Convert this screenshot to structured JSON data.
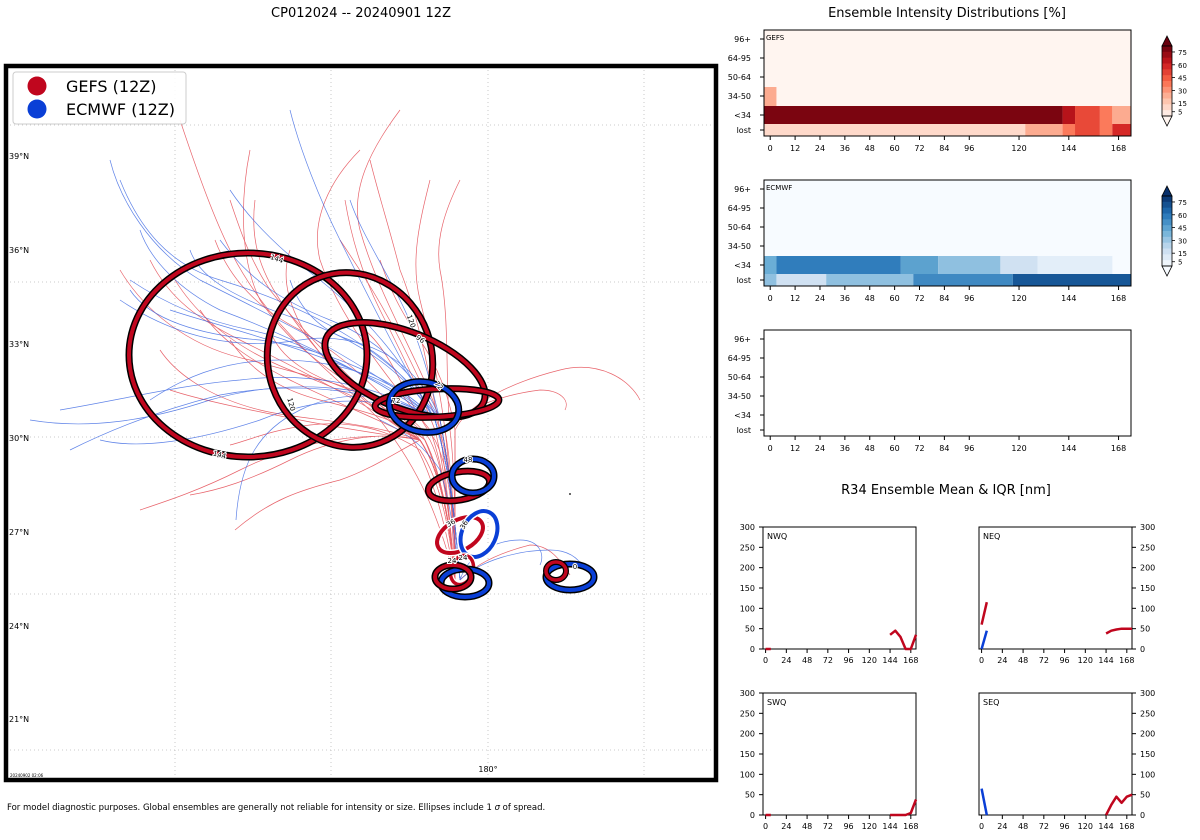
{
  "main_title": "CP012024 -- 20240901 12Z",
  "timestamp_small": "20240902 02:06",
  "footer_note_part1": "For model diagnostic purposes. Global ensembles are generally not reliable for intensity or size. Ellipses include 1 ",
  "footer_sigma": "σ",
  "footer_note_part2": " of spread.",
  "legend": [
    {
      "label": "GEFS (12Z)",
      "color": "#c0061e"
    },
    {
      "label": "ECMWF (12Z)",
      "color": "#0a3fd6"
    }
  ],
  "colors": {
    "gefs": "#c0061e",
    "ecmwf": "#0a3fd6",
    "gefs_track": "#e0303a",
    "ecmwf_track": "#2a5ae0"
  },
  "chart_data": [
    {
      "type": "map",
      "title": "CP012024 -- 20240901 12Z",
      "lat_ticks": [
        "39°N",
        "36°N",
        "33°N",
        "30°N",
        "27°N",
        "24°N",
        "21°N"
      ],
      "lon_ticks": [
        "180°"
      ],
      "gefs_ellipse_labels": [
        "0",
        "24",
        "48",
        "72",
        "96",
        "120",
        "144"
      ],
      "ecmwf_ellipse_labels": [
        "0",
        "24",
        "48",
        "72"
      ]
    },
    {
      "type": "heatmap",
      "title": "Ensemble Intensity Distributions [%]",
      "panels": [
        "GEFS",
        "ECMWF",
        ""
      ],
      "y_categories": [
        "96+",
        "64-95",
        "50-64",
        "34-50",
        "<34",
        "lost"
      ],
      "x_ticks": [
        "0",
        "12",
        "24",
        "36",
        "48",
        "60",
        "72",
        "84",
        "96",
        "120",
        "144",
        "168"
      ],
      "x_range": [
        -3,
        174
      ],
      "colorbar_ticks": [
        "75",
        "60",
        "45",
        "30",
        "15",
        "5"
      ],
      "gefs_cells": [
        {
          "row": "34-50",
          "x0": -3,
          "x1": 3,
          "value": 30
        },
        {
          "row": "<34",
          "x0": -3,
          "x1": 141,
          "value": 95
        },
        {
          "row": "<34",
          "x0": 141,
          "x1": 147,
          "value": 80
        },
        {
          "row": "<34",
          "x0": 147,
          "x1": 159,
          "value": 60
        },
        {
          "row": "<34",
          "x0": 159,
          "x1": 165,
          "value": 45
        },
        {
          "row": "<34",
          "x0": 165,
          "x1": 174,
          "value": 30
        },
        {
          "row": "lost",
          "x0": -3,
          "x1": 123,
          "value": 12
        },
        {
          "row": "lost",
          "x0": 123,
          "x1": 141,
          "value": 30
        },
        {
          "row": "lost",
          "x0": 141,
          "x1": 147,
          "value": 45
        },
        {
          "row": "lost",
          "x0": 147,
          "x1": 159,
          "value": 60
        },
        {
          "row": "lost",
          "x0": 159,
          "x1": 165,
          "value": 45
        },
        {
          "row": "lost",
          "x0": 165,
          "x1": 174,
          "value": 70
        }
      ],
      "ecmwf_cells": [
        {
          "row": "<34",
          "x0": -3,
          "x1": 3,
          "value": 50
        },
        {
          "row": "<34",
          "x0": 3,
          "x1": 63,
          "value": 70
        },
        {
          "row": "<34",
          "x0": 63,
          "x1": 81,
          "value": 55
        },
        {
          "row": "<34",
          "x0": 81,
          "x1": 111,
          "value": 40
        },
        {
          "row": "<34",
          "x0": 111,
          "x1": 129,
          "value": 20
        },
        {
          "row": "<34",
          "x0": 129,
          "x1": 165,
          "value": 10
        },
        {
          "row": "lost",
          "x0": -3,
          "x1": 3,
          "value": 40
        },
        {
          "row": "lost",
          "x0": 3,
          "x1": 27,
          "value": 20
        },
        {
          "row": "lost",
          "x0": 27,
          "x1": 69,
          "value": 40
        },
        {
          "row": "lost",
          "x0": 69,
          "x1": 117,
          "value": 65
        },
        {
          "row": "lost",
          "x0": 117,
          "x1": 174,
          "value": 85
        }
      ]
    },
    {
      "type": "line",
      "title": "R34 Ensemble Mean & IQR [nm]",
      "x_ticks": [
        "0",
        "24",
        "48",
        "72",
        "96",
        "120",
        "144",
        "168"
      ],
      "y_ticks": [
        "300",
        "250",
        "200",
        "150",
        "100",
        "50",
        "0"
      ],
      "xlim": [
        -3,
        174
      ],
      "ylim": [
        0,
        300
      ],
      "panels": [
        {
          "name": "NWQ",
          "gefs": [
            [
              0,
              0
            ],
            [
              6,
              0
            ]
          ],
          "gefs2": [
            [
              144,
              35
            ],
            [
              150,
              45
            ],
            [
              156,
              30
            ],
            [
              162,
              0
            ],
            [
              168,
              0
            ],
            [
              174,
              35
            ]
          ],
          "ecmwf": []
        },
        {
          "name": "NEQ",
          "gefs": [
            [
              0,
              60
            ],
            [
              6,
              115
            ]
          ],
          "gefs2": [
            [
              144,
              38
            ],
            [
              150,
              45
            ],
            [
              156,
              48
            ],
            [
              162,
              50
            ],
            [
              168,
              50
            ],
            [
              174,
              50
            ]
          ],
          "ecmwf": [
            [
              0,
              0
            ],
            [
              6,
              45
            ]
          ]
        },
        {
          "name": "SWQ",
          "gefs": [
            [
              0,
              0
            ],
            [
              6,
              0
            ]
          ],
          "gefs2": [
            [
              144,
              0
            ],
            [
              162,
              0
            ],
            [
              168,
              5
            ],
            [
              174,
              38
            ]
          ],
          "ecmwf": []
        },
        {
          "name": "SEQ",
          "gefs": [],
          "gefs2": [
            [
              144,
              0
            ],
            [
              150,
              25
            ],
            [
              156,
              45
            ],
            [
              162,
              30
            ],
            [
              168,
              45
            ],
            [
              174,
              50
            ]
          ],
          "ecmwf": [
            [
              0,
              65
            ],
            [
              6,
              0
            ]
          ]
        }
      ]
    }
  ]
}
